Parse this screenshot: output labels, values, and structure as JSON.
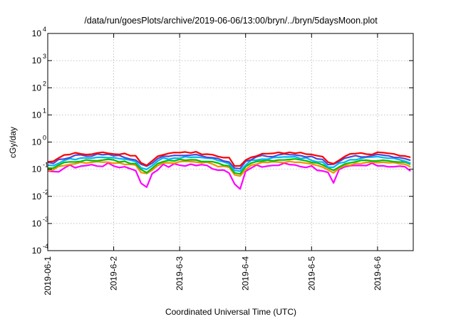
{
  "chart_data": {
    "type": "line",
    "title": "/data/run/goesPlots/archive/2019-06-06/13:00/bryn/../bryn/5daysMoon.plot",
    "xlabel": "Coordinated Universal Time (UTC)",
    "ylabel": "cGy/day",
    "yscale": "log",
    "ylim": [
      0.0001,
      10000
    ],
    "y_ticks": [
      {
        "base": "10",
        "exp": "-4",
        "value": 0.0001
      },
      {
        "base": "10",
        "exp": "-3",
        "value": 0.001
      },
      {
        "base": "10",
        "exp": "-2",
        "value": 0.01
      },
      {
        "base": "10",
        "exp": "-1",
        "value": 0.1
      },
      {
        "base": "10",
        "exp": "0",
        "value": 1
      },
      {
        "base": "10",
        "exp": "1",
        "value": 10
      },
      {
        "base": "10",
        "exp": "2",
        "value": 100
      },
      {
        "base": "10",
        "exp": "3",
        "value": 1000
      },
      {
        "base": "10",
        "exp": "4",
        "value": 10000
      }
    ],
    "x_ticks": [
      "2019-06-1",
      "2019-6-2",
      "2019-6-3",
      "2019-6-4",
      "2019-6-5",
      "2019-6-6"
    ],
    "xlim": [
      "2019-06-01",
      "2019-06-06 13:00"
    ],
    "grid": true,
    "legend": "none",
    "series": [
      {
        "color": "#ff0000",
        "scale": 1.22,
        "noise": 0.12
      },
      {
        "color": "#4b4bd6",
        "scale": 1.0,
        "noise": 0.1
      },
      {
        "color": "#00b4ff",
        "scale": 0.82,
        "noise": 0.09
      },
      {
        "color": "#00c000",
        "scale": 0.66,
        "noise": 0.08
      },
      {
        "color": "#ff8c00",
        "scale": 0.56,
        "noise": 0.08
      },
      {
        "color": "#ff00ff",
        "scale": 0.44,
        "noise": 0.2
      }
    ],
    "profile": {
      "interval_hours": 2,
      "values": [
        0.17,
        0.16,
        0.22,
        0.26,
        0.28,
        0.3,
        0.31,
        0.31,
        0.32,
        0.33,
        0.34,
        0.33,
        0.31,
        0.3,
        0.28,
        0.26,
        0.24,
        0.14,
        0.12,
        0.17,
        0.26,
        0.3,
        0.31,
        0.32,
        0.33,
        0.34,
        0.34,
        0.33,
        0.31,
        0.3,
        0.28,
        0.24,
        0.22,
        0.2,
        0.12,
        0.1,
        0.18,
        0.24,
        0.28,
        0.3,
        0.31,
        0.32,
        0.33,
        0.34,
        0.35,
        0.34,
        0.32,
        0.3,
        0.28,
        0.25,
        0.22,
        0.16,
        0.14,
        0.19,
        0.24,
        0.27,
        0.29,
        0.3,
        0.31,
        0.32,
        0.33,
        0.33,
        0.32,
        0.3,
        0.28,
        0.26,
        0.22,
        0.2,
        0.18,
        0.14,
        0.16,
        0.21,
        0.26,
        0.29,
        0.3,
        0.31,
        0.32,
        0.33,
        0.32,
        0.31,
        0.3,
        0.28,
        0.24,
        0.2,
        0.16,
        0.13,
        0.18,
        0.24,
        0.27,
        0.29,
        0.3,
        0.31,
        0.31,
        0.3
      ]
    }
  }
}
